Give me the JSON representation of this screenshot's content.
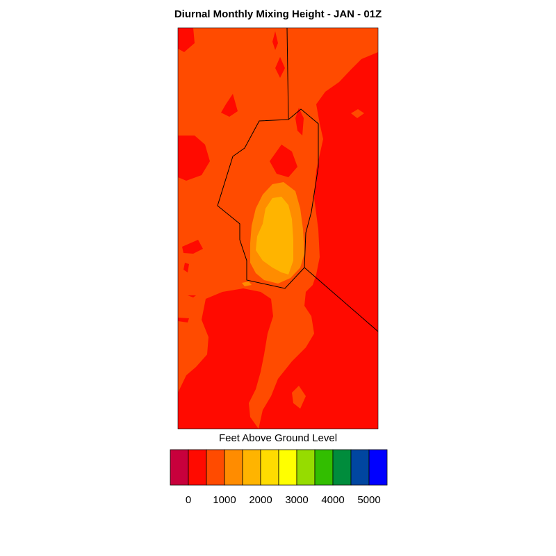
{
  "chart_data": {
    "type": "heatmap",
    "title": "Diurnal Monthly Mixing Height - JAN - 01Z",
    "colorbar": {
      "label": "Feet Above Ground Level",
      "tick_labels": [
        "0",
        "1000",
        "2000",
        "3000",
        "4000",
        "5000"
      ],
      "tick_values": [
        0,
        1000,
        2000,
        3000,
        4000,
        5000
      ],
      "level_step": 500,
      "colors": [
        "#c8003c",
        "#ff0a00",
        "#ff4b00",
        "#ff8c00",
        "#ffb400",
        "#ffdc00",
        "#ffff00",
        "#96dc00",
        "#32be00",
        "#008c3c",
        "#0046a0",
        "#0000ff"
      ]
    },
    "regions": [
      {
        "level_min": 0,
        "level_max": 500,
        "color": "#ff0a00"
      },
      {
        "level_min": 500,
        "level_max": 1000,
        "color": "#ff4b00"
      },
      {
        "level_min": 1000,
        "level_max": 1500,
        "color": "#ff8c00"
      },
      {
        "level_min": 1500,
        "level_max": 2000,
        "color": "#ffb400"
      }
    ]
  }
}
